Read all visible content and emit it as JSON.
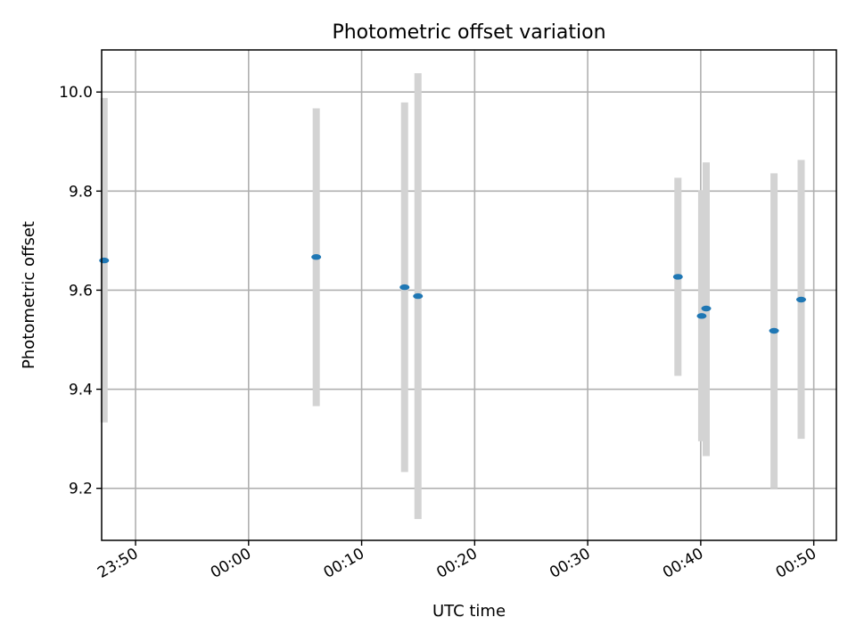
{
  "chart_data": {
    "type": "scatter",
    "title": "Photometric offset variation",
    "xlabel": "UTC time",
    "ylabel": "Photometric offset",
    "x_axis_type": "time",
    "xlim": [
      "2023-01-01T23:47:00",
      "2023-01-02T00:52:00"
    ],
    "ylim": [
      9.095,
      10.085
    ],
    "xticks": [
      {
        "t": "2023-01-01T23:50:00",
        "label": "23:50"
      },
      {
        "t": "2023-01-02T00:00:00",
        "label": "00:00"
      },
      {
        "t": "2023-01-02T00:10:00",
        "label": "00:10"
      },
      {
        "t": "2023-01-02T00:20:00",
        "label": "00:20"
      },
      {
        "t": "2023-01-02T00:30:00",
        "label": "00:30"
      },
      {
        "t": "2023-01-02T00:40:00",
        "label": "00:40"
      },
      {
        "t": "2023-01-02T00:50:00",
        "label": "00:50"
      }
    ],
    "yticks": [
      {
        "v": 9.2,
        "label": "9.2"
      },
      {
        "v": 9.4,
        "label": "9.4"
      },
      {
        "v": 9.6,
        "label": "9.6"
      },
      {
        "v": 9.8,
        "label": "9.8"
      },
      {
        "v": 10.0,
        "label": "10.0"
      }
    ],
    "grid": true,
    "xtick_rotation_deg": 30,
    "colors": {
      "marker": "#1f77b4",
      "errorbar": "#d3d3d3"
    },
    "points": [
      {
        "t": "2023-01-01T23:47:13",
        "y": 9.66,
        "ylow": 9.333,
        "yhigh": 9.988
      },
      {
        "t": "2023-01-02T00:05:59",
        "y": 9.667,
        "ylow": 9.366,
        "yhigh": 9.967
      },
      {
        "t": "2023-01-02T00:13:48",
        "y": 9.606,
        "ylow": 9.233,
        "yhigh": 9.979
      },
      {
        "t": "2023-01-02T00:14:59",
        "y": 9.588,
        "ylow": 9.138,
        "yhigh": 10.038
      },
      {
        "t": "2023-01-02T00:37:59",
        "y": 9.627,
        "ylow": 9.427,
        "yhigh": 9.827
      },
      {
        "t": "2023-01-02T00:40:05",
        "y": 9.548,
        "ylow": 9.295,
        "yhigh": 9.802
      },
      {
        "t": "2023-01-02T00:40:29",
        "y": 9.563,
        "ylow": 9.265,
        "yhigh": 9.858
      },
      {
        "t": "2023-01-02T00:46:29",
        "y": 9.518,
        "ylow": 9.2,
        "yhigh": 9.836
      },
      {
        "t": "2023-01-02T00:48:53",
        "y": 9.581,
        "ylow": 9.3,
        "yhigh": 9.863
      }
    ]
  }
}
